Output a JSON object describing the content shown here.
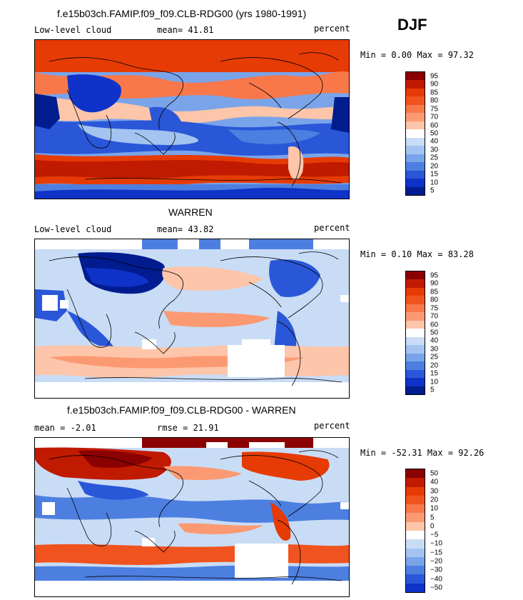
{
  "season": "DJF",
  "panels": [
    {
      "title": "f.e15b03ch.FAMIP.f09_f09.CLB-RDG00 (yrs 1980-1991)",
      "left_label": "Low-level cloud",
      "stat_label": "mean=  41.81",
      "right_label": "percent",
      "minmax": "Min =    0.00 Max =   97.32",
      "colorbar_ticks": [
        "95",
        "90",
        "85",
        "80",
        "75",
        "70",
        "60",
        "50",
        "40",
        "30",
        "25",
        "20",
        "15",
        "10",
        "5"
      ]
    },
    {
      "title": "WARREN",
      "left_label": "Low-level cloud",
      "stat_label": "mean=  43.82",
      "right_label": "percent",
      "minmax": "Min =    0.10 Max =   83.28",
      "colorbar_ticks": [
        "95",
        "90",
        "85",
        "80",
        "75",
        "70",
        "60",
        "50",
        "40",
        "30",
        "25",
        "20",
        "15",
        "10",
        "5"
      ]
    },
    {
      "title": "f.e15b03ch.FAMIP.f09_f09.CLB-RDG00 - WARREN",
      "left_label": "mean =   -2.01",
      "stat_label": "rmse =   21.91",
      "right_label": "percent",
      "minmax": "Min = -52.31 Max =   92.26",
      "colorbar_ticks": [
        "50",
        "40",
        "30",
        "20",
        "10",
        "5",
        "0",
        "−5",
        "−10",
        "−15",
        "−20",
        "−30",
        "−40",
        "−50"
      ]
    }
  ],
  "colors": {
    "scale15": [
      "#8b0000",
      "#c01a00",
      "#e63b05",
      "#f0531e",
      "#f8784a",
      "#fb9a72",
      "#fdc5a9",
      "#ffffff",
      "#c9dcf6",
      "#a3c4f0",
      "#7aa4ea",
      "#4d7fe0",
      "#2a57d8",
      "#0f32c8",
      "#001c8f"
    ],
    "scale14": [
      "#8b0000",
      "#c01a00",
      "#e63b05",
      "#f0531e",
      "#f8784a",
      "#fb9a72",
      "#fdc5a9",
      "#ffffff",
      "#c9dcf6",
      "#a3c4f0",
      "#7aa4ea",
      "#4d7fe0",
      "#2a57d8",
      "#0f32c8"
    ]
  }
}
